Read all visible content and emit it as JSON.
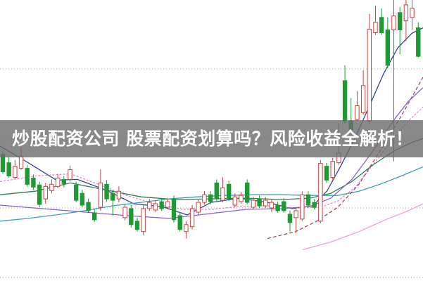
{
  "headline": {
    "text": "炒股配资公司 股票配资划算吗？风险收益全解析！",
    "text_color": "#ffffff",
    "band_color": "rgba(108,108,108,0.8)"
  },
  "chart_data": {
    "type": "candlestick",
    "title": "",
    "xlabel": "",
    "ylabel": "",
    "grid": "dotted horizontal lines, no axis tick labels visible",
    "legend_position": "none",
    "price_axis": {
      "gridline_prices": [
        13.0,
        12.0,
        11.0,
        10.0
      ],
      "visible_range": [
        9.94,
        13.99
      ]
    },
    "colors": {
      "background": "#ffffff",
      "grid": "#aaaaaa",
      "up": "#c5443f",
      "up_fill": "#ffffff",
      "down": "#1f9935",
      "ma_navy": "#33448f",
      "ma_pink": "#e884d6",
      "ma_green": "#2f7d4e",
      "ma_teal": "#3f9fb0",
      "ma_purple": "#8a63c5",
      "ma_maroon": "#9e4a66"
    },
    "candles": [
      [
        11.77,
        11.82,
        11.49,
        11.52
      ],
      [
        11.65,
        11.74,
        11.44,
        11.46
      ],
      [
        11.44,
        11.69,
        11.42,
        11.6
      ],
      [
        11.57,
        11.87,
        11.55,
        11.74
      ],
      [
        11.57,
        11.62,
        11.31,
        11.34
      ],
      [
        11.43,
        11.48,
        11.26,
        11.3
      ],
      [
        11.33,
        11.38,
        11.01,
        11.05
      ],
      [
        11.13,
        11.36,
        11.06,
        11.31
      ],
      [
        11.25,
        11.41,
        11.21,
        11.34
      ],
      [
        11.31,
        11.49,
        11.28,
        11.43
      ],
      [
        11.41,
        11.46,
        11.3,
        11.35
      ],
      [
        11.41,
        11.61,
        11.38,
        11.55
      ],
      [
        11.33,
        11.38,
        11.08,
        11.11
      ],
      [
        11.21,
        11.26,
        11.01,
        11.04
      ],
      [
        11.08,
        11.13,
        10.93,
        10.96
      ],
      [
        10.93,
        10.98,
        10.8,
        10.83
      ],
      [
        11.01,
        11.55,
        10.96,
        11.36
      ],
      [
        11.34,
        11.4,
        11.09,
        11.13
      ],
      [
        11.21,
        11.26,
        10.89,
        11.11
      ],
      [
        11.13,
        11.31,
        11.08,
        11.24
      ],
      [
        10.86,
        11.06,
        10.82,
        11.01
      ],
      [
        10.99,
        11.04,
        10.72,
        10.76
      ],
      [
        10.81,
        10.86,
        10.66,
        10.69
      ],
      [
        10.66,
        11.04,
        10.61,
        10.99
      ],
      [
        10.99,
        11.13,
        10.96,
        11.08
      ],
      [
        10.97,
        11.11,
        10.94,
        11.06
      ],
      [
        11.09,
        11.13,
        10.96,
        10.99
      ],
      [
        11.01,
        11.14,
        10.98,
        11.09
      ],
      [
        11.13,
        11.18,
        10.79,
        10.83
      ],
      [
        10.89,
        10.93,
        10.66,
        10.69
      ],
      [
        10.66,
        10.81,
        10.56,
        10.76
      ],
      [
        10.73,
        11.04,
        10.69,
        10.99
      ],
      [
        10.94,
        11.13,
        10.9,
        11.08
      ],
      [
        11.08,
        11.24,
        11.05,
        11.19
      ],
      [
        11.19,
        11.24,
        11.05,
        11.09
      ],
      [
        11.36,
        11.41,
        11.09,
        11.13
      ],
      [
        11.11,
        11.44,
        11.08,
        11.29
      ],
      [
        11.34,
        11.39,
        11.1,
        11.13
      ],
      [
        11.04,
        11.21,
        11.01,
        11.16
      ],
      [
        11.09,
        11.23,
        11.06,
        11.18
      ],
      [
        11.36,
        11.41,
        11.05,
        11.08
      ],
      [
        11.01,
        11.16,
        10.98,
        11.11
      ],
      [
        11.13,
        11.18,
        11.0,
        11.03
      ],
      [
        11.03,
        11.16,
        11.0,
        11.11
      ],
      [
        11.0,
        11.13,
        10.94,
        11.08
      ],
      [
        11.04,
        11.09,
        10.93,
        10.96
      ],
      [
        11.09,
        11.14,
        10.93,
        10.96
      ],
      [
        10.91,
        10.96,
        10.66,
        10.79
      ],
      [
        10.86,
        11.01,
        10.64,
        10.96
      ],
      [
        10.84,
        11.24,
        10.81,
        11.19
      ],
      [
        11.19,
        11.24,
        11.01,
        11.04
      ],
      [
        11.08,
        11.13,
        10.98,
        11.01
      ],
      [
        10.81,
        11.69,
        10.78,
        11.64
      ],
      [
        11.6,
        11.65,
        11.36,
        11.4
      ],
      [
        11.44,
        11.72,
        11.41,
        11.67
      ],
      [
        11.65,
        12.22,
        11.62,
        11.79
      ],
      [
        12.83,
        13.05,
        12.22,
        12.25
      ],
      [
        12.25,
        12.58,
        12.09,
        12.12
      ],
      [
        12.27,
        12.68,
        12.25,
        12.47
      ],
      [
        12.37,
        12.98,
        12.34,
        12.76
      ],
      [
        12.25,
        13.79,
        12.22,
        13.57
      ],
      [
        13.52,
        13.91,
        13.49,
        13.67
      ],
      [
        13.74,
        13.87,
        13.49,
        13.52
      ],
      [
        13.56,
        13.74,
        13.01,
        13.05
      ],
      [
        13.56,
        13.99,
        11.67,
        13.76
      ],
      [
        13.81,
        13.89,
        13.21,
        13.56
      ],
      [
        13.69,
        13.99,
        13.4,
        13.92
      ],
      [
        13.74,
        13.99,
        13.56,
        13.87
      ],
      [
        13.59,
        13.67,
        13.16,
        13.18
      ]
    ],
    "moving_averages": [
      {
        "name": "ma-fast-navy",
        "color": "#33448f",
        "dash": "",
        "points": [
          [
            0,
            11.89
          ],
          [
            40,
            11.65
          ],
          [
            80,
            11.4
          ],
          [
            110,
            11.41
          ],
          [
            150,
            11.26
          ],
          [
            190,
            11.06
          ],
          [
            230,
            11.02
          ],
          [
            266,
            10.9
          ],
          [
            300,
            11.08
          ],
          [
            340,
            11.14
          ],
          [
            380,
            11.08
          ],
          [
            415,
            10.99
          ],
          [
            445,
            11.03
          ],
          [
            465,
            11.25
          ],
          [
            485,
            11.62
          ],
          [
            505,
            12.02
          ],
          [
            525,
            12.47
          ],
          [
            545,
            12.93
          ],
          [
            565,
            13.3
          ],
          [
            585,
            13.51
          ],
          [
            601,
            13.59
          ]
        ]
      },
      {
        "name": "ma-pink",
        "color": "#e884d6",
        "dash": "3 2",
        "points": [
          [
            0,
            11.38
          ],
          [
            50,
            11.46
          ],
          [
            100,
            11.49
          ],
          [
            140,
            11.34
          ],
          [
            180,
            11.18
          ],
          [
            220,
            11.06
          ],
          [
            260,
            10.98
          ],
          [
            300,
            10.98
          ],
          [
            340,
            11.02
          ],
          [
            380,
            11.03
          ],
          [
            420,
            11.0
          ],
          [
            455,
            11.01
          ],
          [
            480,
            11.1
          ],
          [
            505,
            11.3
          ],
          [
            530,
            11.62
          ],
          [
            555,
            11.95
          ],
          [
            580,
            12.25
          ],
          [
            601,
            12.45
          ]
        ]
      },
      {
        "name": "ma-green",
        "color": "#2f7d4e",
        "dash": "",
        "points": [
          [
            0,
            11.19
          ],
          [
            50,
            11.24
          ],
          [
            100,
            11.36
          ],
          [
            150,
            11.26
          ],
          [
            200,
            11.16
          ],
          [
            250,
            11.12
          ],
          [
            300,
            11.13
          ],
          [
            350,
            11.14
          ],
          [
            400,
            11.12
          ],
          [
            440,
            11.14
          ],
          [
            470,
            11.21
          ],
          [
            500,
            11.38
          ],
          [
            530,
            11.62
          ],
          [
            560,
            11.82
          ],
          [
            585,
            11.94
          ],
          [
            601,
            12.0
          ]
        ]
      },
      {
        "name": "ma-teal",
        "color": "#3f9fb0",
        "dash": "",
        "points": [
          [
            0,
            10.81
          ],
          [
            40,
            10.85
          ],
          [
            80,
            10.9
          ],
          [
            120,
            10.96
          ],
          [
            160,
            11.03
          ],
          [
            200,
            11.08
          ],
          [
            240,
            11.13
          ],
          [
            280,
            11.16
          ],
          [
            320,
            11.18
          ],
          [
            360,
            11.19
          ],
          [
            400,
            11.19
          ],
          [
            440,
            11.18
          ],
          [
            480,
            11.18
          ],
          [
            510,
            11.24
          ],
          [
            540,
            11.34
          ],
          [
            570,
            11.46
          ],
          [
            601,
            11.59
          ]
        ]
      },
      {
        "name": "ma-purple",
        "color": "#8a63c5",
        "dash": "",
        "points": [
          [
            0,
            11.04
          ],
          [
            60,
            10.99
          ],
          [
            120,
            10.94
          ],
          [
            180,
            10.89
          ],
          [
            240,
            10.85
          ],
          [
            300,
            10.92
          ],
          [
            350,
            10.98
          ],
          [
            400,
            10.99
          ],
          [
            440,
            11.02
          ],
          [
            470,
            11.14
          ],
          [
            500,
            11.41
          ],
          [
            530,
            11.82
          ],
          [
            560,
            12.27
          ],
          [
            580,
            12.53
          ],
          [
            601,
            12.73
          ]
        ]
      },
      {
        "name": "ma-maroon",
        "color": "#9e4a66",
        "dash": "5 3",
        "points": [
          [
            380,
            10.56
          ],
          [
            420,
            10.66
          ],
          [
            450,
            10.81
          ],
          [
            480,
            11.01
          ],
          [
            510,
            11.34
          ],
          [
            540,
            11.82
          ],
          [
            570,
            12.32
          ],
          [
            601,
            12.88
          ]
        ]
      },
      {
        "name": "ma-pink-slow",
        "color": "#eda0dc",
        "dash": "",
        "points": [
          [
            430,
            10.4
          ],
          [
            470,
            10.51
          ],
          [
            510,
            10.66
          ],
          [
            550,
            10.84
          ],
          [
            580,
            10.96
          ],
          [
            601,
            11.06
          ]
        ]
      }
    ]
  }
}
